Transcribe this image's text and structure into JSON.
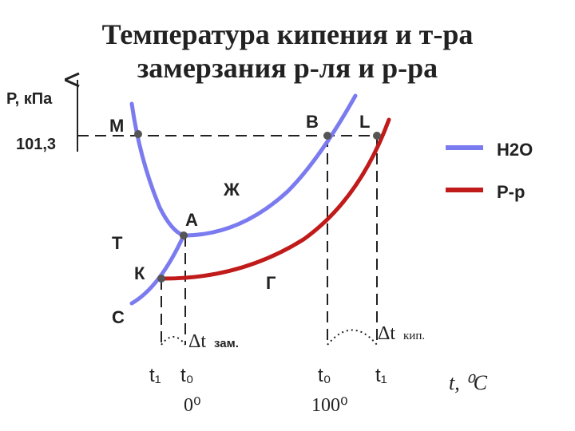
{
  "title": {
    "line1": "Температура кипения и т-ра",
    "line2": "замерзания р-ля и р-ра"
  },
  "axis": {
    "y_label": "Р, кПа",
    "y_value": "101,3",
    "x_label": "t, ⁰C"
  },
  "points": {
    "M": "М",
    "B": "В",
    "L": "L",
    "A": "А",
    "K": "К",
    "T": "Т",
    "G": "Г",
    "C": "С",
    "Zh": "Ж"
  },
  "legend": {
    "water": "Н2О",
    "solution": "Р-р"
  },
  "annotations": {
    "dt_freeze": "Δt",
    "freeze": "зам.",
    "dt_boil": "Δt",
    "boil": "кип.",
    "t1_left": "t₁",
    "t0_left": "t₀",
    "t0_right": "t₀",
    "t1_right": "t₁",
    "zero": "0⁰",
    "hundred": "100⁰"
  }
}
